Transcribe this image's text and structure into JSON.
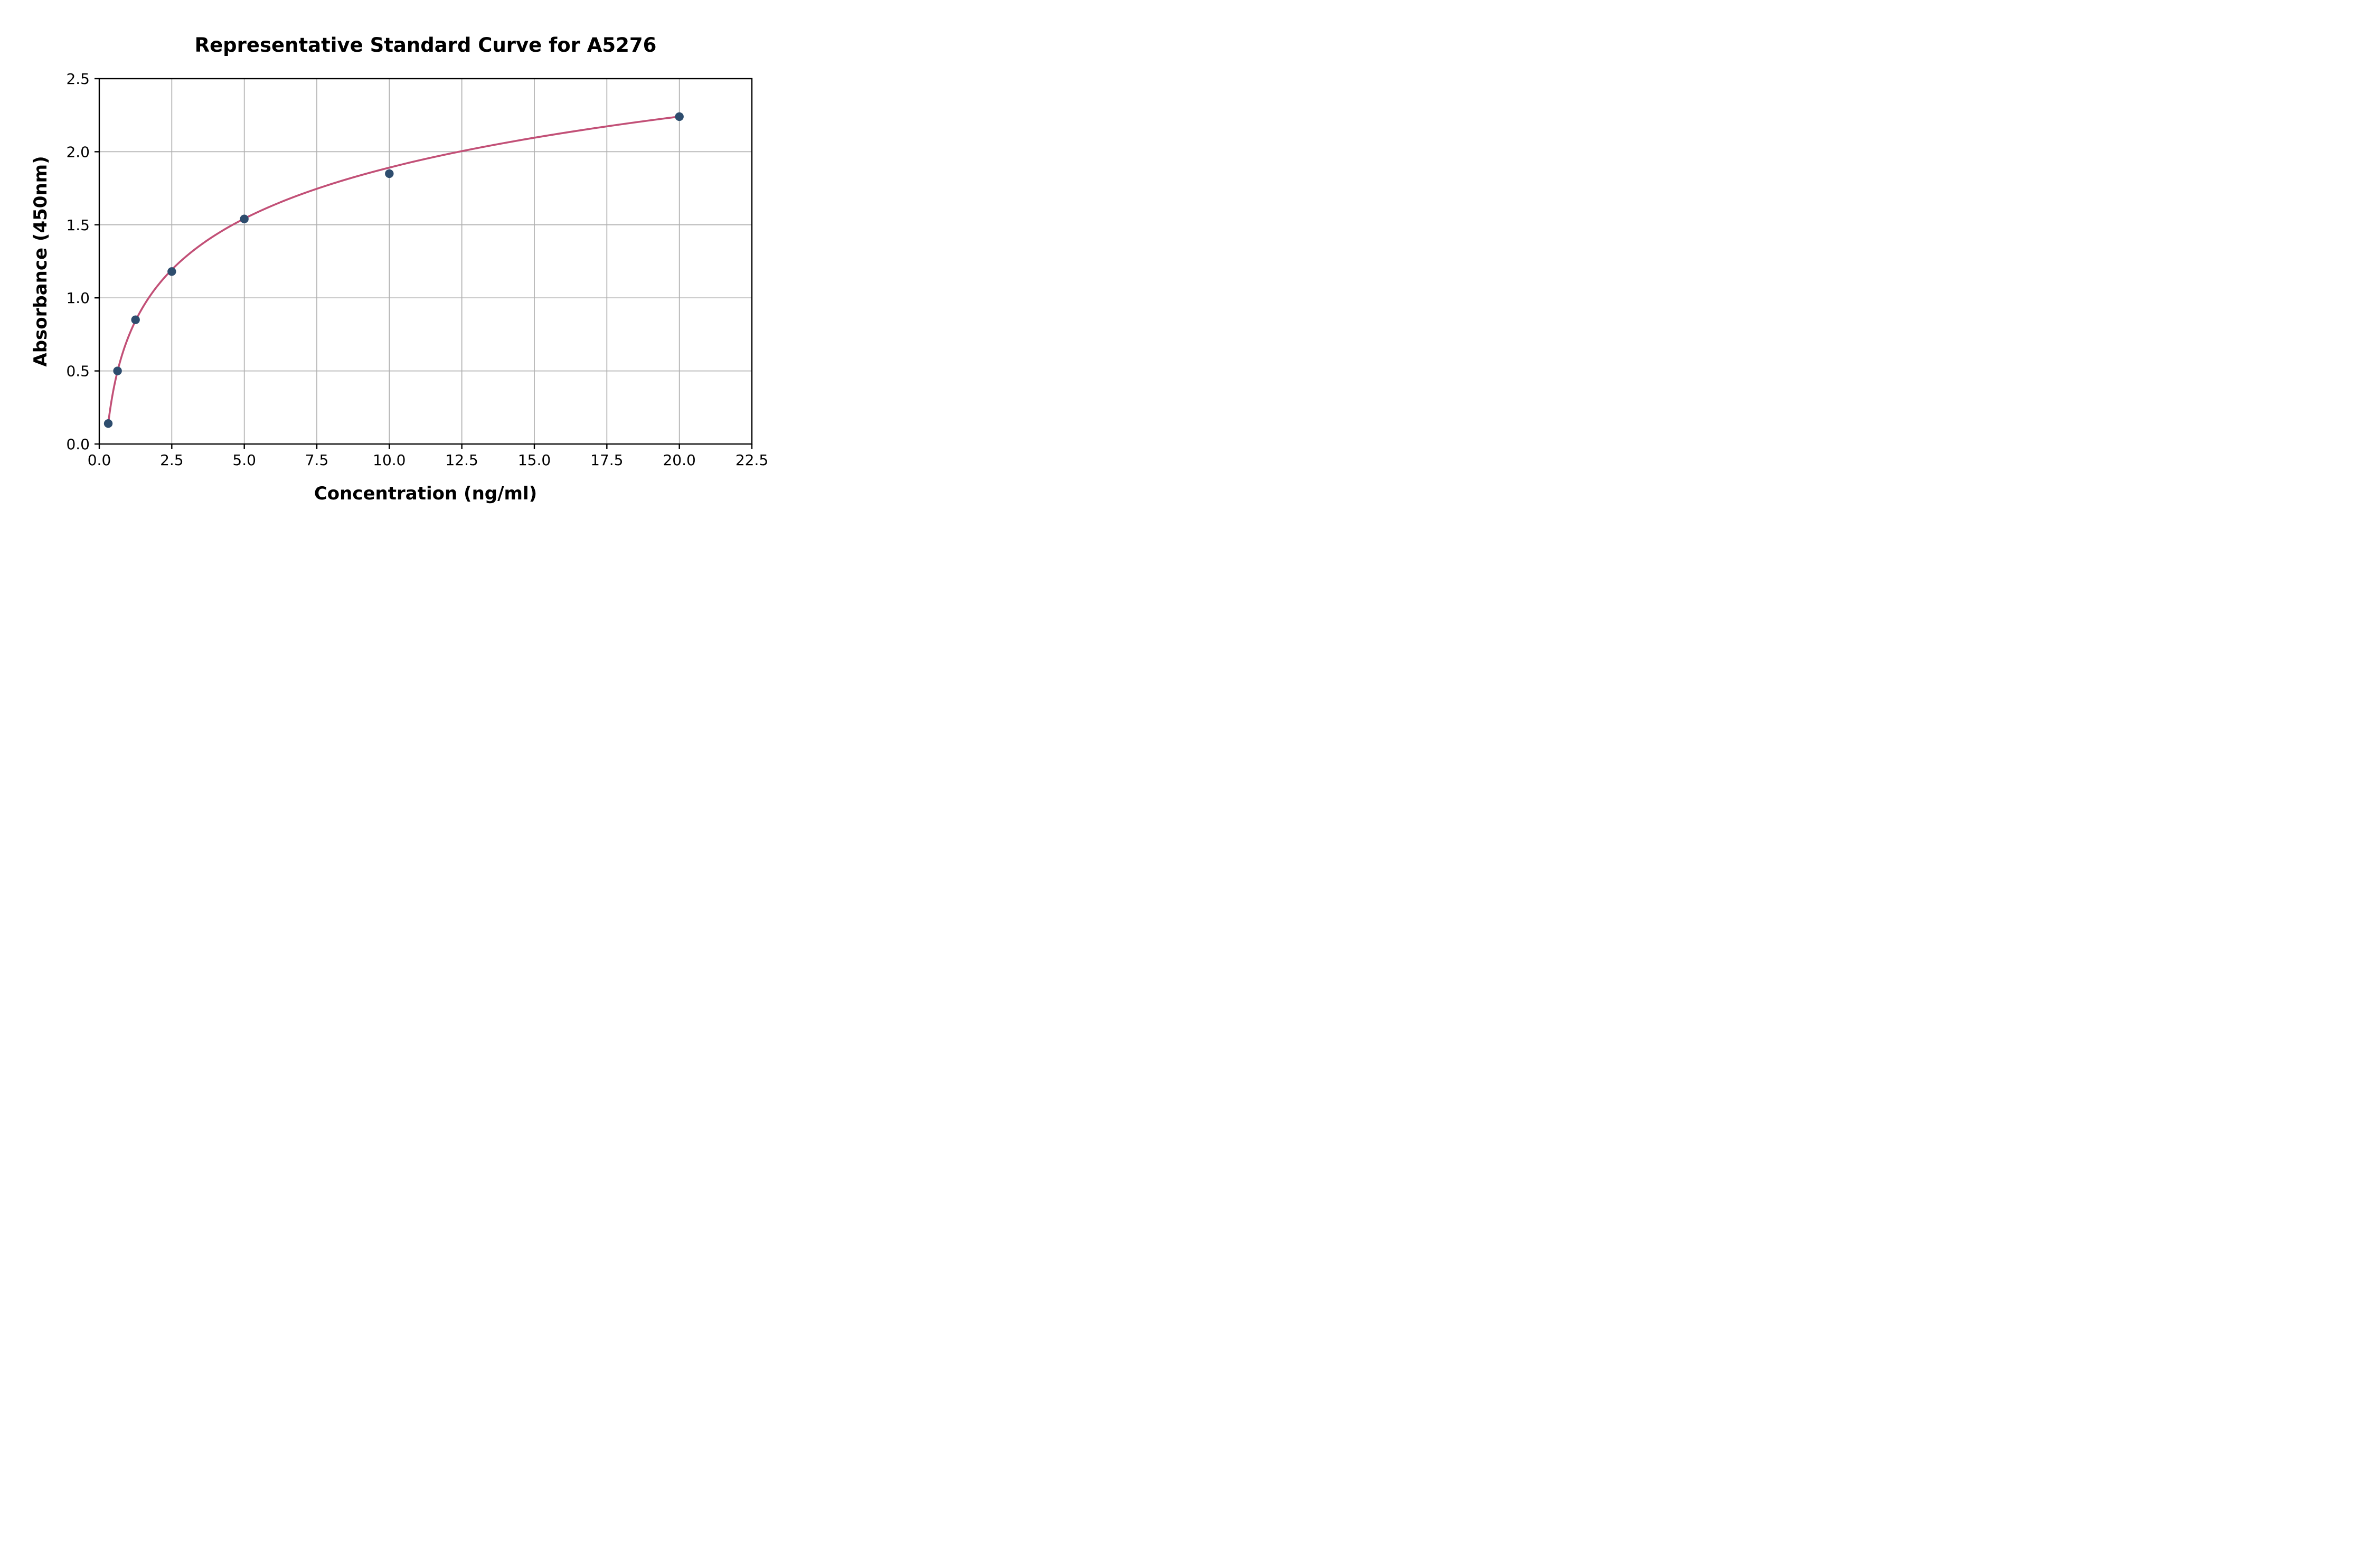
{
  "title": "Representative Standard Curve for A5276",
  "chart_data": {
    "type": "scatter",
    "title": "Representative Standard Curve for A5276",
    "xlabel": "Concentration (ng/ml)",
    "ylabel": "Absorbance (450nm)",
    "xlim": [
      0,
      22.5
    ],
    "ylim": [
      0,
      2.5
    ],
    "x_ticks": [
      0.0,
      2.5,
      5.0,
      7.5,
      10.0,
      12.5,
      15.0,
      17.5,
      20.0,
      22.5
    ],
    "x_tick_labels": [
      "0.0",
      "2.5",
      "5.0",
      "7.5",
      "10.0",
      "12.5",
      "15.0",
      "17.5",
      "20.0",
      "22.5"
    ],
    "y_ticks": [
      0.0,
      0.5,
      1.0,
      1.5,
      2.0,
      2.5
    ],
    "y_tick_labels": [
      "0.0",
      "0.5",
      "1.0",
      "1.5",
      "2.0",
      "2.5"
    ],
    "grid": true,
    "legend": "none",
    "series": [
      {
        "name": "standard-points",
        "type": "scatter",
        "color": "#2e4d6e",
        "x": [
          0.31,
          0.63,
          1.25,
          2.5,
          5.0,
          10.0,
          20.0
        ],
        "y": [
          0.14,
          0.5,
          0.85,
          1.18,
          1.54,
          1.85,
          2.24
        ]
      },
      {
        "name": "fit-curve",
        "type": "line",
        "color": "#c25077",
        "fit": {
          "form": "a*ln(x)+b",
          "a": 0.504,
          "b": 0.731,
          "x_start": 0.31,
          "x_end": 20.0
        }
      }
    ],
    "colors": {
      "point": "#2e4d6e",
      "curve": "#c25077",
      "gridline": "#b0b0b0",
      "spine": "#000000",
      "background": "#ffffff"
    }
  }
}
